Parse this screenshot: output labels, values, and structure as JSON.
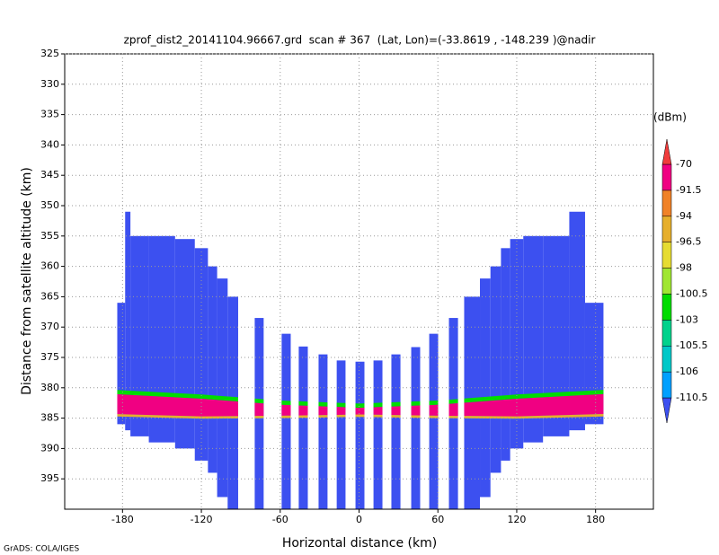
{
  "chart_data": {
    "type": "profile",
    "title": "zprof_dist2_20141104.96667.grd  scan # 367  (Lat, Lon)=(-33.8619 , -148.239 )@nadir",
    "x_label": "Horizontal distance (km)",
    "y_label": "Distance from satellite altitude (km)",
    "footer": "GrADS: COLA/IGES",
    "colorbar_unit": "(dBm)",
    "xlim": [
      -224,
      224
    ],
    "ylim": [
      400,
      325
    ],
    "xticks": [
      -180,
      -120,
      -60,
      0,
      60,
      120,
      180
    ],
    "yticks": [
      325,
      330,
      335,
      340,
      345,
      350,
      355,
      360,
      365,
      370,
      375,
      380,
      385,
      390,
      395
    ],
    "grid": true,
    "levels": [
      -110.5,
      -106,
      -105.5,
      -103,
      -100.5,
      -98,
      -96.5,
      -94,
      -91.5,
      -70
    ],
    "colors": [
      "#3c50f0",
      "#00a0ff",
      "#00c8c8",
      "#00d28c",
      "#00dc00",
      "#a0e632",
      "#e6dc32",
      "#e6af2d",
      "#f08228",
      "#f00082",
      "#f03c3c"
    ],
    "field_value": -115,
    "columns": [
      [
        -184,
        -178,
        366,
        386
      ],
      [
        -178,
        -174,
        351,
        387
      ],
      [
        -174,
        -160,
        355,
        388
      ],
      [
        -160,
        -140,
        355,
        389
      ],
      [
        -140,
        -125,
        355.5,
        390
      ],
      [
        -125,
        -115,
        357,
        392
      ],
      [
        -115,
        -108,
        360,
        394
      ],
      [
        -108,
        -100,
        362,
        398
      ],
      [
        -100,
        -92,
        365,
        400
      ],
      [
        -79.4,
        -72.6,
        368.5,
        400
      ],
      [
        -58.9,
        -52,
        371.1,
        400
      ],
      [
        -45.9,
        -39,
        373.2,
        400
      ],
      [
        -30.8,
        -24,
        374.5,
        400
      ],
      [
        -17,
        -10.3,
        375.5,
        400
      ],
      [
        -2.7,
        4.1,
        375.7,
        400
      ],
      [
        11,
        17.8,
        375.5,
        400
      ],
      [
        24.6,
        31.5,
        374.5,
        400
      ],
      [
        39.7,
        46.5,
        373.3,
        400
      ],
      [
        53.4,
        60.2,
        371.1,
        400
      ],
      [
        68.4,
        75.3,
        368.5,
        400
      ],
      [
        80,
        92,
        365,
        400
      ],
      [
        92,
        100,
        362,
        398
      ],
      [
        100,
        108,
        360,
        394
      ],
      [
        108,
        115,
        357,
        392
      ],
      [
        115,
        125,
        355.5,
        390
      ],
      [
        125,
        140,
        355,
        389
      ],
      [
        140,
        160,
        355,
        388
      ],
      [
        160,
        172,
        351,
        387
      ],
      [
        172,
        186,
        366,
        386
      ]
    ],
    "layers": [
      {
        "value": -101,
        "x": [
          -190,
          -120,
          -60,
          0,
          60,
          120,
          190
        ],
        "top": [
          380.3,
          381.1,
          382.1,
          382.6,
          382.1,
          381.1,
          380.3
        ],
        "bottom": [
          381,
          381.8,
          382.8,
          383.3,
          382.8,
          381.8,
          381
        ]
      },
      {
        "value": -80,
        "x": [
          -190,
          -120,
          -60,
          0,
          60,
          120,
          190
        ],
        "top": [
          381,
          381.8,
          382.8,
          383.3,
          382.8,
          381.8,
          381
        ],
        "bottom": [
          384.3,
          384.7,
          384.6,
          384.4,
          384.6,
          384.7,
          384.3
        ]
      },
      {
        "value": -95,
        "x": [
          -190,
          -120,
          -60,
          0,
          60,
          120,
          190
        ],
        "top": [
          384.3,
          384.7,
          384.6,
          384.4,
          384.6,
          384.7,
          384.3
        ],
        "bottom": [
          384.7,
          385.1,
          385,
          384.8,
          385,
          385.1,
          384.7
        ]
      }
    ]
  }
}
